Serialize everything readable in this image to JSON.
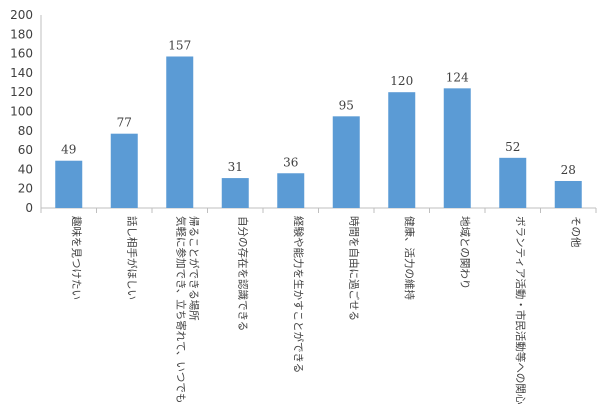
{
  "chart_data": {
    "type": "bar",
    "title": "",
    "xlabel": "",
    "ylabel": "",
    "ylim": [
      0,
      200
    ],
    "yticks": [
      0,
      20,
      40,
      60,
      80,
      100,
      120,
      140,
      160,
      180,
      200
    ],
    "grid": false,
    "legend": "none",
    "bar_color": "#5B9BD5",
    "categories": [
      [
        "趣味を見つけたい"
      ],
      [
        "話し相手がほしい"
      ],
      [
        "気軽に参加でき、立ち寄れて、いつでも",
        "帰ることができる場所"
      ],
      [
        "自分の存在を認識できる"
      ],
      [
        "経験や能力を生かすことができる"
      ],
      [
        "時間を自由に過ごせる"
      ],
      [
        "健康、活力の維持"
      ],
      [
        "地域との関わり"
      ],
      [
        "ボランティア活動・市民活動等への関心"
      ],
      [
        "その他"
      ]
    ],
    "values": [
      49,
      77,
      157,
      31,
      36,
      95,
      120,
      124,
      52,
      28
    ]
  }
}
